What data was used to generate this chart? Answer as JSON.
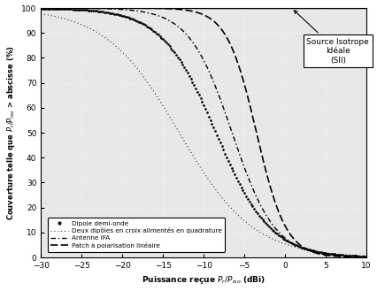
{
  "title": "",
  "xlabel": "Puissance reçue $P_r/P_{iso}$ (dBi)",
  "ylabel": "Couverture telle que $P_r/P_{iso}$ > abscisse (%)",
  "xlim": [
    -30,
    10
  ],
  "ylim": [
    0,
    100
  ],
  "xticks": [
    -30,
    -25,
    -20,
    -15,
    -10,
    -5,
    0,
    5,
    10
  ],
  "yticks": [
    0,
    10,
    20,
    30,
    40,
    50,
    60,
    70,
    80,
    90,
    100
  ],
  "annotation_text": "Source Isotrope\nIdéale\n(SII)",
  "legend_labels": [
    "Dipole demi-onde",
    "Deux dipôles en croix alimentés en quadrature",
    "Antenne IFA",
    "Patch à polarisation linéaire"
  ],
  "curve_params": {
    "dipole": {
      "x50": -8.5,
      "steep": 0.3
    },
    "deux_dipoles": {
      "x50": -13.0,
      "steep": 0.22
    },
    "ifa": {
      "x50": -6.5,
      "steep": 0.38
    },
    "patch": {
      "x50": -3.5,
      "steep": 0.55
    }
  }
}
